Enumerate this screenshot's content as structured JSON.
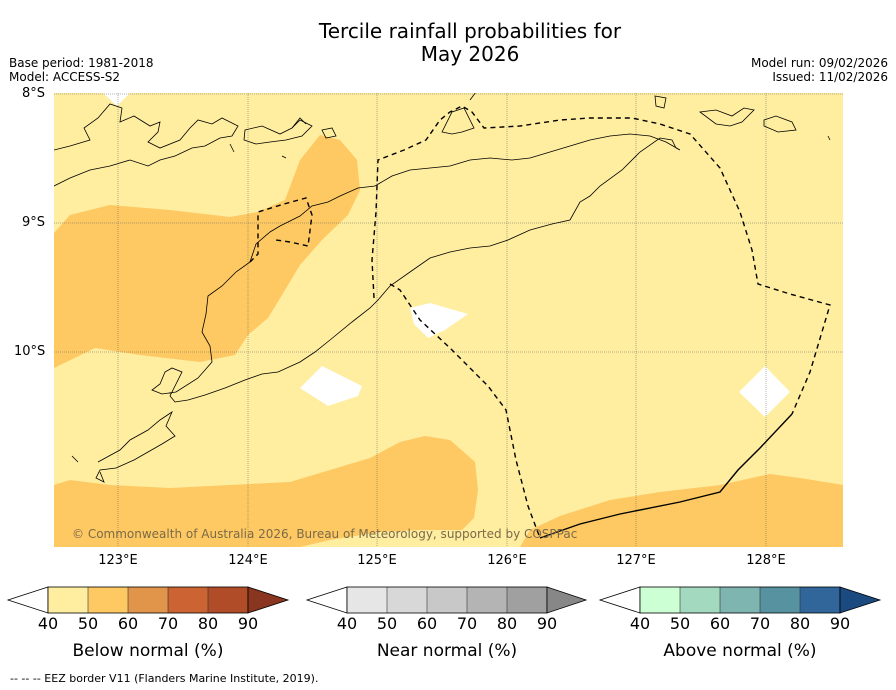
{
  "title": "Tercile rainfall probabilities for\nMay 2026",
  "title_lines": [
    "Tercile rainfall probabilities for",
    "May 2026"
  ],
  "meta_left": [
    "Base period: 1981-2018",
    "Model: ACCESS-S2"
  ],
  "meta_right": [
    "Model run: 09/02/2026",
    "Issued: 11/02/2026"
  ],
  "map": {
    "lat_labels": [
      "8°S",
      "9°S",
      "10°S"
    ],
    "lon_labels": [
      "123°E",
      "124°E",
      "125°E",
      "126°E",
      "127°E",
      "128°E"
    ],
    "extent": {
      "lon_min": 122.5,
      "lon_max": 128.6,
      "lat_max": -8.0,
      "lat_min": -11.5
    },
    "copyright": "© Commonwealth of Australia 2026, Bureau of Meteorology, supported by COSPPac"
  },
  "colorbars": [
    {
      "name": "below",
      "label": "Below normal (%)",
      "ticks": [
        "40",
        "50",
        "60",
        "70",
        "80",
        "90"
      ],
      "colors": [
        "#ffeda0",
        "#fec963",
        "#e0954a",
        "#cc6333",
        "#b04d28",
        "#8a3520"
      ]
    },
    {
      "name": "near",
      "label": "Near normal (%)",
      "ticks": [
        "40",
        "50",
        "60",
        "70",
        "80",
        "90"
      ],
      "colors": [
        "#e6e6e6",
        "#d8d8d8",
        "#c8c8c8",
        "#b4b4b4",
        "#a0a0a0",
        "#878787"
      ]
    },
    {
      "name": "above",
      "label": "Above normal (%)",
      "ticks": [
        "40",
        "50",
        "60",
        "70",
        "80",
        "90"
      ],
      "colors": [
        "#ccffd4",
        "#a3d9be",
        "#7fb5b1",
        "#5792a1",
        "#306699",
        "#1a4a80"
      ]
    }
  ],
  "footer": "--  --  -- EEZ border V11 (Flanders Marine Institute, 2019)."
}
